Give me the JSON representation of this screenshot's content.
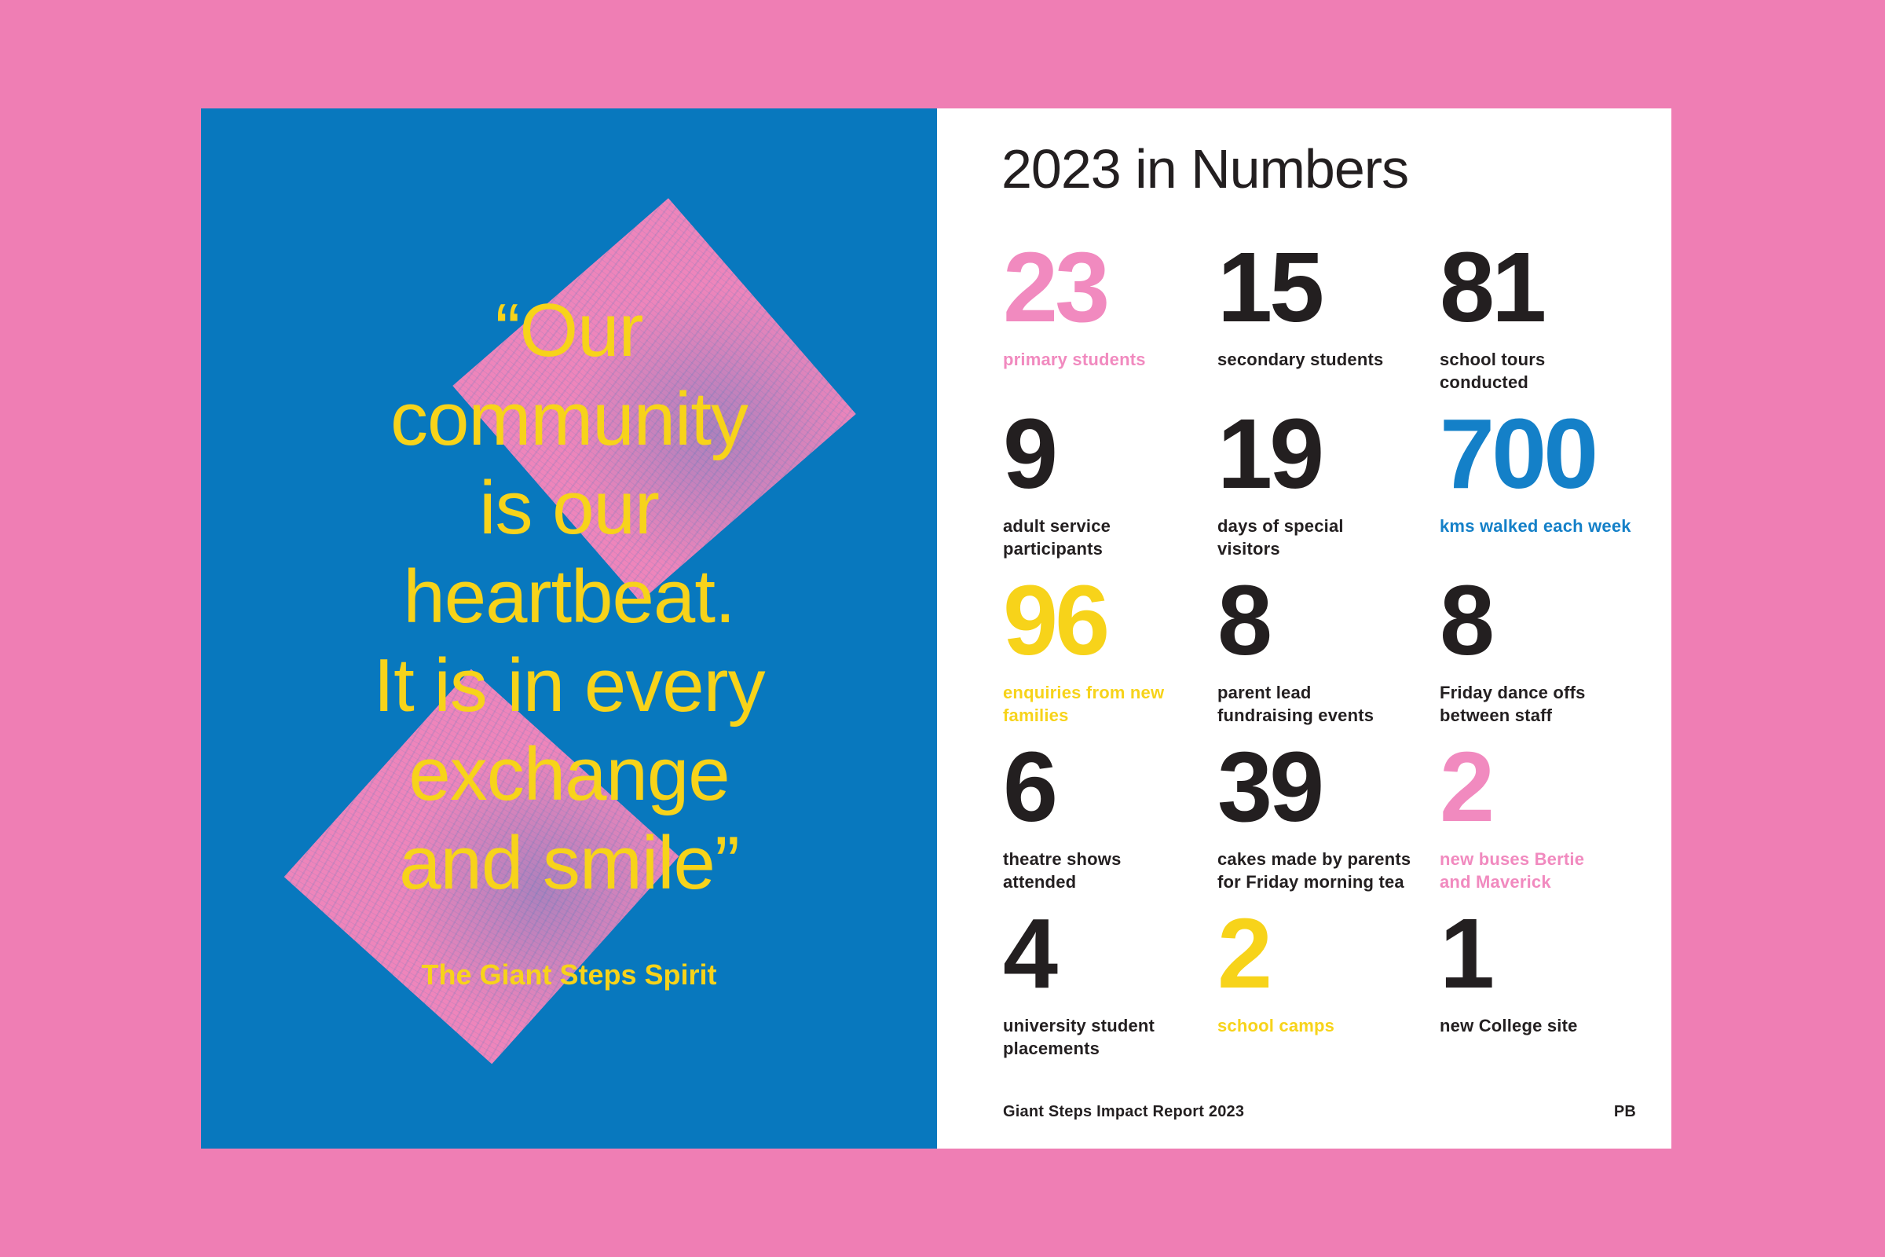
{
  "colors": {
    "frame_pink": "#EF7EB4",
    "page_blue": "#0878BE",
    "page_white": "#FFFFFF",
    "diamond_pink": "#EE85BB",
    "yellow": "#F7D31A",
    "stat_pink": "#F18ABF",
    "stat_blue": "#1480C8",
    "ink": "#231F20"
  },
  "left_page": {
    "quote_lines": [
      "“Our",
      "community",
      "is our",
      "heartbeat.",
      "It is in every",
      "exchange",
      "and smile”"
    ],
    "attribution": "The Giant Steps Spirit"
  },
  "right_page": {
    "title": "2023 in Numbers",
    "stats": [
      {
        "value": "23",
        "label": "primary students",
        "color": "#F18ABF"
      },
      {
        "value": "15",
        "label": "secondary students",
        "color": "#231F20"
      },
      {
        "value": "81",
        "label": "school tours\nconducted",
        "color": "#231F20"
      },
      {
        "value": "9",
        "label": "adult service\nparticipants",
        "color": "#231F20"
      },
      {
        "value": "19",
        "label": "days of special\nvisitors",
        "color": "#231F20"
      },
      {
        "value": "700",
        "label": "kms walked each week",
        "color": "#1480C8"
      },
      {
        "value": "96",
        "label": "enquiries from new\nfamilies",
        "color": "#F7D31A"
      },
      {
        "value": "8",
        "label": "parent lead\nfundraising events",
        "color": "#231F20"
      },
      {
        "value": "8",
        "label": "Friday dance offs\nbetween staff",
        "color": "#231F20"
      },
      {
        "value": "6",
        "label": "theatre shows\nattended",
        "color": "#231F20"
      },
      {
        "value": "39",
        "label": "cakes made by parents\nfor Friday morning tea",
        "color": "#231F20"
      },
      {
        "value": "2",
        "label": "new buses Bertie\nand Maverick",
        "color": "#F18ABF"
      },
      {
        "value": "4",
        "label": "university student\nplacements",
        "color": "#231F20"
      },
      {
        "value": "2",
        "label": "school camps",
        "color": "#F7D31A"
      },
      {
        "value": "1",
        "label": "new College site",
        "color": "#231F20"
      }
    ],
    "footer_left": "Giant Steps Impact Report 2023",
    "footer_right": "PB"
  }
}
